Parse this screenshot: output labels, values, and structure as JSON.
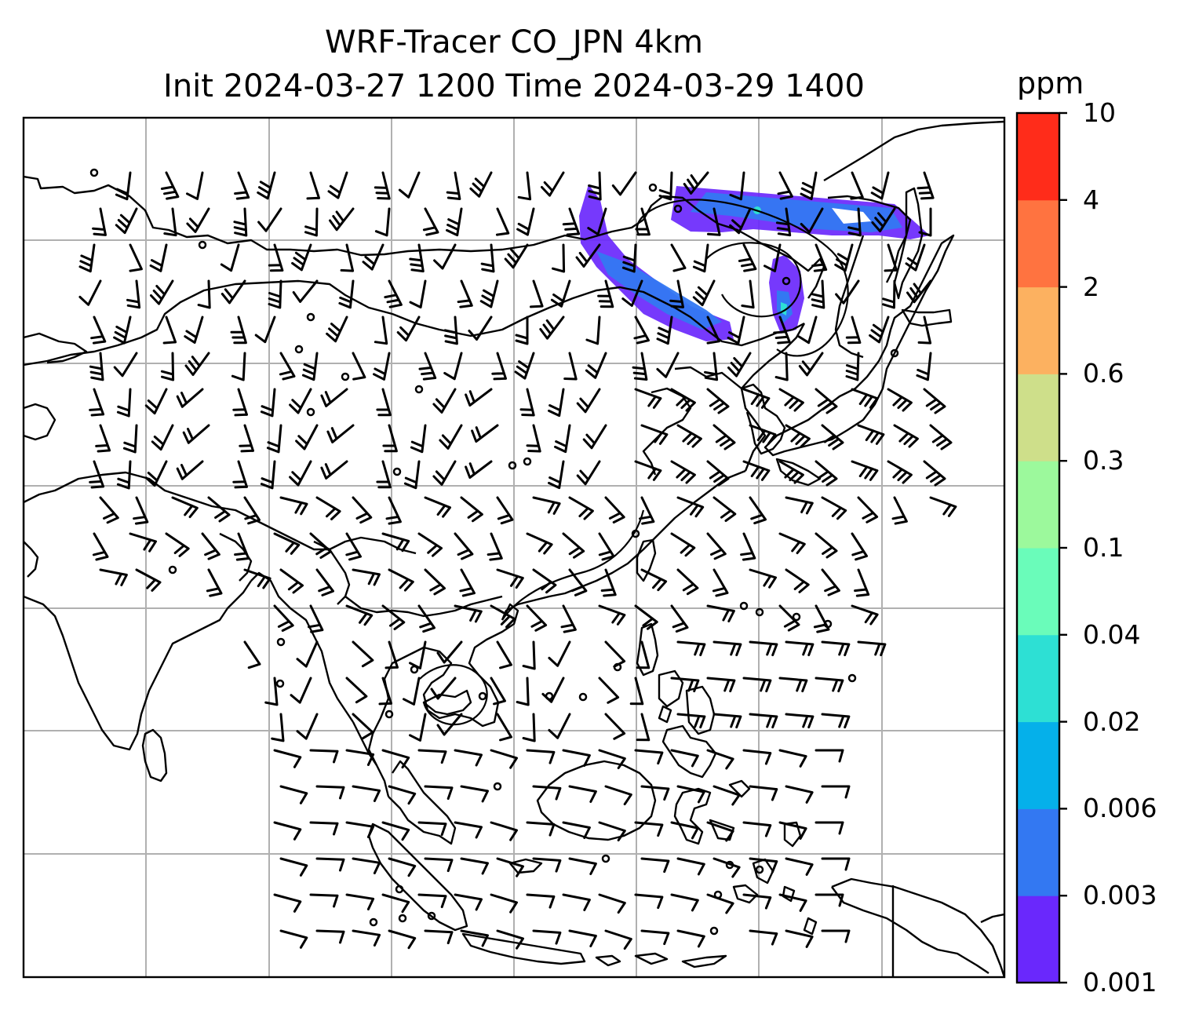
{
  "title": {
    "line1": "WRF-Tracer CO_JPN 4km",
    "line2": "Init 2024-03-27 1200 Time 2024-03-29 1400"
  },
  "colorbar": {
    "unit": "ppm",
    "levels": [
      "0.001",
      "0.003",
      "0.006",
      "0.02",
      "0.04",
      "0.1",
      "0.3",
      "0.6",
      "2",
      "4",
      "10"
    ],
    "colors": [
      "#6a28fc",
      "#3378f2",
      "#05b0ea",
      "#2de0d4",
      "#6afcba",
      "#9cf99c",
      "#cedf8a",
      "#fcb160",
      "#ff7340",
      "#ff2c1a"
    ]
  },
  "map": {
    "projection": "lat-lon",
    "gridlines": "on",
    "features": [
      "coastlines",
      "country-borders",
      "wind-barbs",
      "CO-tracer-plume"
    ],
    "plume_color": "#6a28fc"
  }
}
